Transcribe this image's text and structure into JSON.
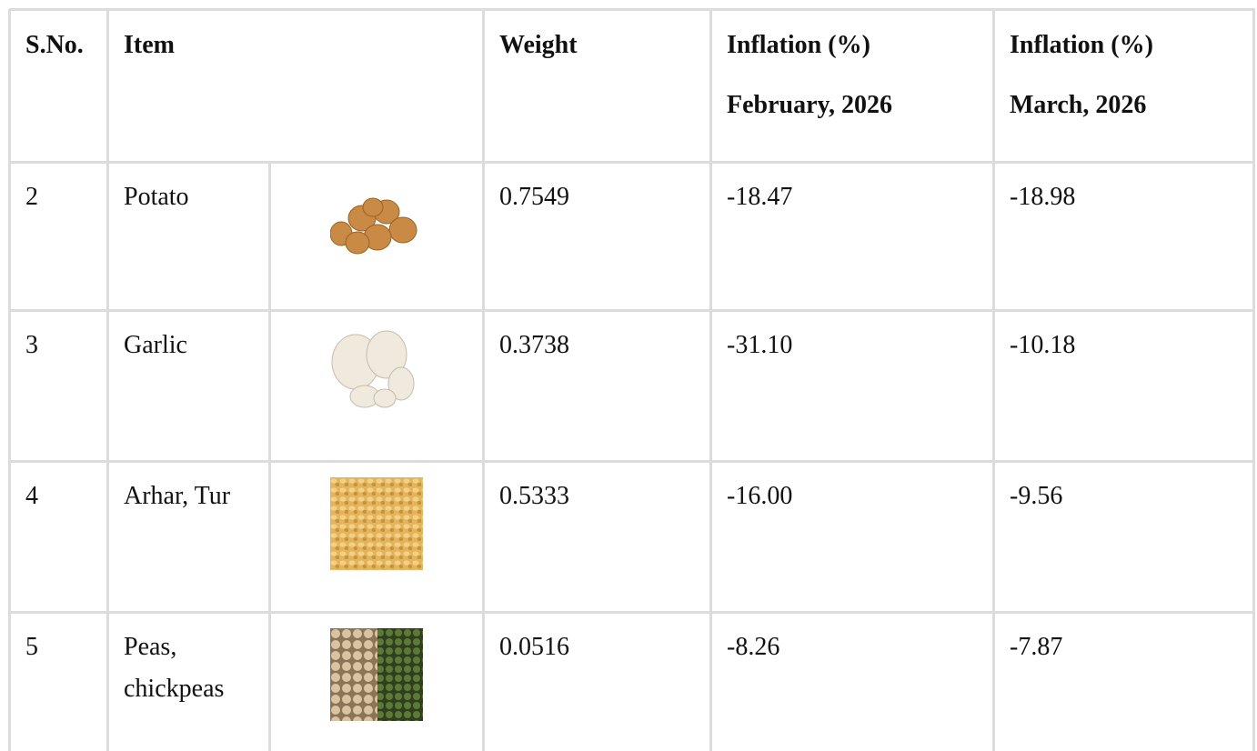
{
  "table": {
    "header": [
      "S.No.",
      "Item",
      "Weight",
      [
        "Inflation (%)",
        "February, 2026"
      ],
      [
        "Inflation (%)",
        "March, 2026"
      ]
    ],
    "rows": [
      [
        "2",
        "Potato",
        "0.7549",
        "-18.47",
        "-18.98"
      ],
      [
        "3",
        "Garlic",
        "0.3738",
        "-31.10",
        "-10.18"
      ],
      [
        "4",
        "Arhar, Tur",
        "0.5333",
        "-16.00",
        "-9.56"
      ],
      [
        "5",
        "Peas, chickpeas",
        "0.0516",
        "-8.26",
        "-7.87"
      ]
    ]
  }
}
